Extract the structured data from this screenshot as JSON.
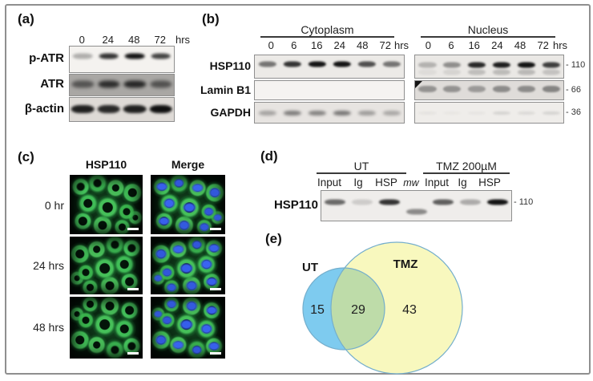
{
  "figure": {
    "panel_a": {
      "label": "(a)",
      "time_labels": [
        "0",
        "24",
        "48",
        "72"
      ],
      "time_unit": "hrs",
      "rows": [
        {
          "name": "p-ATR",
          "bands": [
            0.3,
            0.85,
            1.0,
            0.78
          ],
          "bg": "#f4f2ef",
          "color": "#141414",
          "bh": 7,
          "bw": 19,
          "blur": 1.5,
          "by": 0.36
        },
        {
          "name": "ATR",
          "bands": [
            0.6,
            0.88,
            0.92,
            0.62
          ],
          "bg": "#a9a7a4",
          "color": "#1c1c1c",
          "bh": 9,
          "bw": 21,
          "blur": 2.2,
          "by": 0.47
        },
        {
          "name": "β-actin",
          "bands": [
            0.92,
            0.88,
            0.92,
            1.0
          ],
          "bg": "#dedad6",
          "color": "#101010",
          "bh": 10,
          "bw": 22,
          "blur": 1.5,
          "by": 0.48
        }
      ]
    },
    "panel_b": {
      "label": "(b)",
      "row_names": [
        "HSP110",
        "Lamin B1",
        "GAPDH"
      ],
      "mw_labels": [
        "- 110",
        "- 66",
        "- 36"
      ],
      "time_unit": "hrs",
      "cytoplasm": {
        "title": "Cytoplasm",
        "time_labels": [
          "0",
          "6",
          "16",
          "24",
          "48",
          "72"
        ],
        "blots": [
          {
            "bands": [
              0.55,
              0.85,
              1.0,
              1.0,
              0.72,
              0.55
            ],
            "bg": "#eceae7",
            "color": "#151515",
            "bh": 7,
            "bw": 12,
            "blur": 1.3,
            "by": 0.4
          },
          {
            "bands": [
              0,
              0,
              0,
              0,
              0,
              0
            ],
            "bg": "#f5f3f1",
            "color": "#333333",
            "bh": 5,
            "bw": 12,
            "blur": 1.5,
            "by": 0.5
          },
          {
            "bands": [
              0.35,
              0.55,
              0.52,
              0.58,
              0.38,
              0.32
            ],
            "bg": "#e7e4e1",
            "color": "#2a2a2a",
            "bh": 6,
            "bw": 12,
            "blur": 1.8,
            "by": 0.5
          }
        ]
      },
      "nucleus": {
        "title": "Nucleus",
        "time_labels": [
          "0",
          "6",
          "16",
          "24",
          "48",
          "72"
        ],
        "blots": [
          {
            "bands": [
              0.25,
              0.42,
              0.9,
              0.95,
              1.0,
              0.8
            ],
            "bg": "#eae8e5",
            "color": "#141414",
            "bh": 7,
            "bw": 12,
            "blur": 1.3,
            "by": 0.43,
            "shadow": true
          },
          {
            "bands": [
              0.5,
              0.5,
              0.45,
              0.55,
              0.55,
              0.6
            ],
            "bg": "#dfdcd9",
            "color": "#4a4a4a",
            "bh": 8,
            "bw": 12,
            "blur": 1.0,
            "by": 0.45,
            "corner": true
          },
          {
            "bands": [
              0.06,
              0.04,
              0.05,
              0.16,
              0.12,
              0.16
            ],
            "bg": "#efedea",
            "color": "#555555",
            "bh": 4,
            "bw": 12,
            "blur": 1.2,
            "by": 0.5
          }
        ]
      }
    },
    "panel_c": {
      "label": "(c)",
      "col_headers": [
        "HSP110",
        "Merge"
      ],
      "row_labels": [
        "0 hr",
        "24 hrs",
        "48 hrs"
      ]
    },
    "panel_d": {
      "label": "(d)",
      "group_labels": [
        "UT",
        "TMZ 200µM"
      ],
      "lane_labels": [
        "Input",
        "Ig",
        "HSP",
        "mw",
        "Input",
        "Ig",
        "HSP"
      ],
      "row_name": "HSP110",
      "mw_label": "- 110",
      "blot": {
        "bands": [
          0.6,
          0.15,
          0.85,
          0.45,
          0.65,
          0.3,
          1.0
        ],
        "bg": "#efedeb",
        "color": "#141414",
        "bh": 7,
        "bw": 11,
        "blur": 1.4,
        "by": 0.38,
        "offsets": [
          0,
          0,
          0,
          12,
          0,
          0,
          0
        ]
      }
    },
    "panel_e": {
      "label": "(e)",
      "venn": {
        "left_label": "UT",
        "right_label": "TMZ",
        "left_count": "15",
        "overlap_count": "29",
        "right_count": "43",
        "left_fill": "#7ECBEF",
        "right_fill": "#F8F8BE",
        "overlap_fill": "#BEDCA9",
        "stroke": "#74AECC",
        "left_label_color": "#2E9BD6"
      }
    }
  }
}
